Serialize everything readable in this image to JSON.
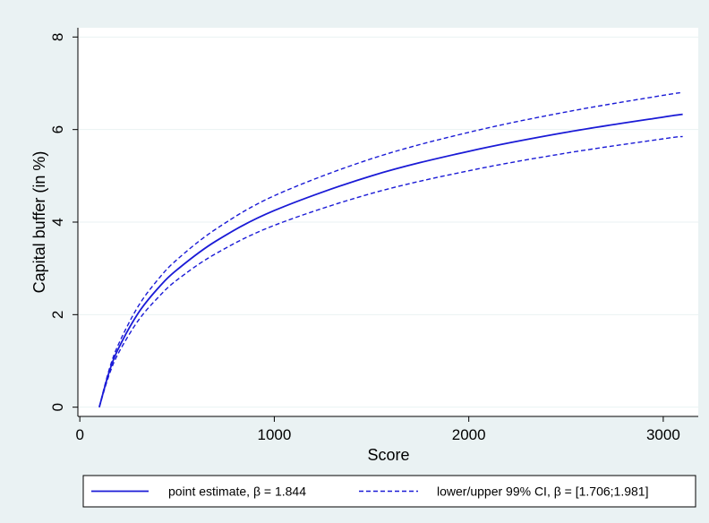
{
  "chart_data": {
    "type": "line",
    "title": "",
    "xlabel": "Score",
    "ylabel": "Capital buffer (in %)",
    "xlim": [
      -10,
      3180
    ],
    "ylim": [
      -0.2,
      8.2
    ],
    "xticks": [
      0,
      1000,
      2000,
      3000
    ],
    "xtick_labels": [
      "0",
      "1000",
      "2000",
      "3000"
    ],
    "yticks": [
      0,
      2,
      4,
      6,
      8
    ],
    "ytick_labels": [
      "0",
      "2",
      "4",
      "6",
      "8"
    ],
    "grid": "horizontal gridlines at y ticks",
    "legend_position": "bottom",
    "background_color": "#eaf2f3",
    "plot_background_color": "#ffffff",
    "line_color": "#1a1ad6",
    "series": [
      {
        "name": "point estimate, β = 1.844",
        "style": "solid",
        "x": [
          100,
          150,
          200,
          300,
          400,
          500,
          700,
          1000,
          1500,
          2000,
          2500,
          3000,
          3100
        ],
        "values": [
          0.0,
          0.75,
          1.28,
          2.03,
          2.56,
          2.97,
          3.59,
          4.25,
          5.0,
          5.53,
          5.94,
          6.27,
          6.33
        ]
      },
      {
        "name": "lower/upper 99% CI, β = [1.706;1.981]",
        "style": "dashed",
        "x": [
          100,
          150,
          200,
          300,
          400,
          500,
          700,
          1000,
          1500,
          2000,
          2500,
          3000,
          3100
        ],
        "values": [
          0.0,
          0.8,
          1.37,
          2.18,
          2.75,
          3.19,
          3.85,
          4.57,
          5.37,
          5.94,
          6.38,
          6.74,
          6.8
        ]
      },
      {
        "name": "",
        "style": "dashed",
        "x": [
          100,
          150,
          200,
          300,
          400,
          500,
          700,
          1000,
          1500,
          2000,
          2500,
          3000,
          3100
        ],
        "values": [
          0.0,
          0.69,
          1.18,
          1.87,
          2.36,
          2.75,
          3.32,
          3.93,
          4.62,
          5.11,
          5.49,
          5.8,
          5.85
        ]
      }
    ]
  }
}
